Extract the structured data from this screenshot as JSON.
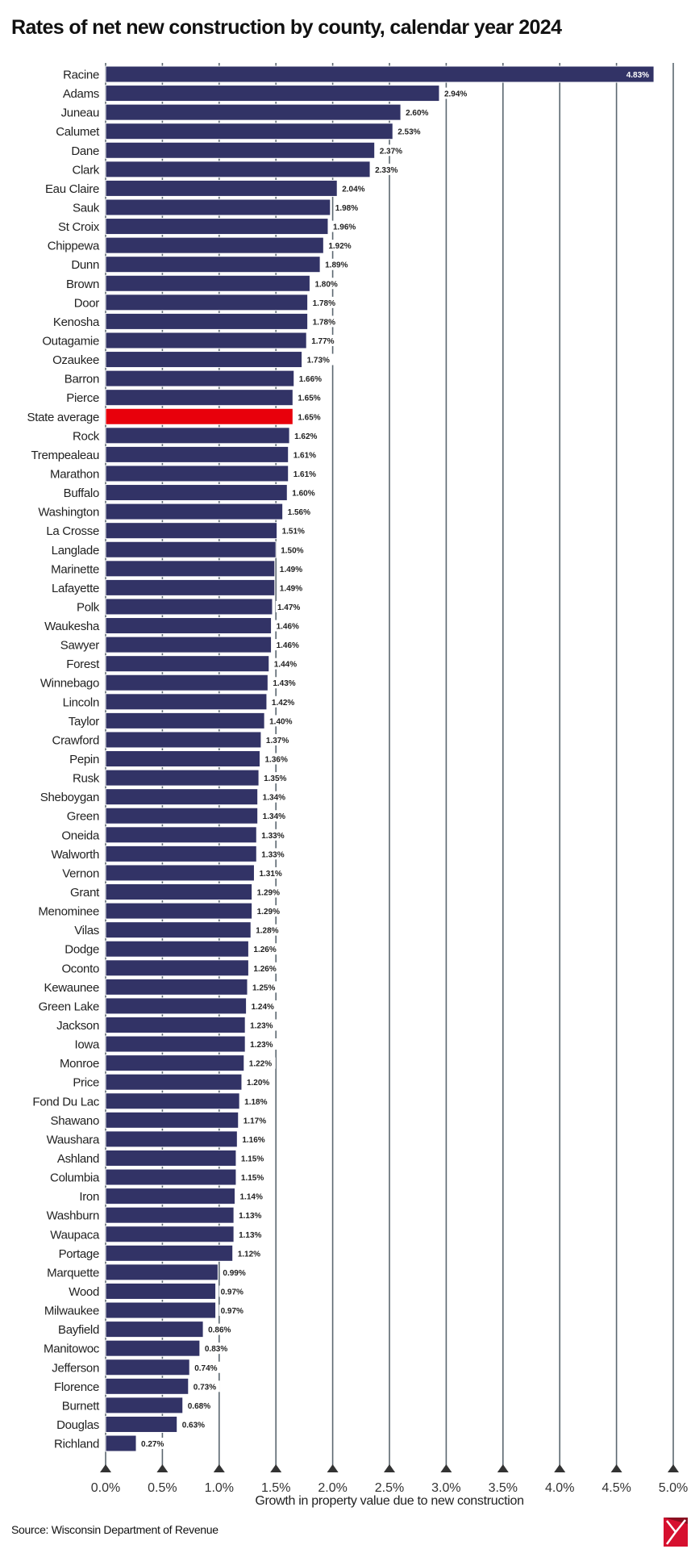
{
  "chart_data": {
    "type": "bar",
    "orientation": "horizontal",
    "title": "Rates of net new construction by county, calendar year 2024",
    "xlabel": "Growth in property value due to new construction",
    "ylabel": "",
    "xlim": [
      0,
      5.0
    ],
    "x_ticks": [
      "0.0%",
      "0.5%",
      "1.0%",
      "1.5%",
      "2.0%",
      "2.5%",
      "3.0%",
      "3.5%",
      "4.0%",
      "4.5%",
      "5.0%"
    ],
    "grid": "vertical",
    "bar_color": "#323366",
    "highlight_color": "#e8000b",
    "highlight_category": "State average",
    "categories": [
      "Racine",
      "Adams",
      "Juneau",
      "Calumet",
      "Dane",
      "Clark",
      "Eau Claire",
      "Sauk",
      "St Croix",
      "Chippewa",
      "Dunn",
      "Brown",
      "Door",
      "Kenosha",
      "Outagamie",
      "Ozaukee",
      "Barron",
      "Pierce",
      "State average",
      "Rock",
      "Trempealeau",
      "Marathon",
      "Buffalo",
      "Washington",
      "La Crosse",
      "Langlade",
      "Marinette",
      "Lafayette",
      "Polk",
      "Waukesha",
      "Sawyer",
      "Forest",
      "Winnebago",
      "Lincoln",
      "Taylor",
      "Crawford",
      "Pepin",
      "Rusk",
      "Sheboygan",
      "Green",
      "Oneida",
      "Walworth",
      "Vernon",
      "Grant",
      "Menominee",
      "Vilas",
      "Dodge",
      "Oconto",
      "Kewaunee",
      "Green Lake",
      "Jackson",
      "Iowa",
      "Monroe",
      "Price",
      "Fond Du Lac",
      "Shawano",
      "Waushara",
      "Ashland",
      "Columbia",
      "Iron",
      "Washburn",
      "Waupaca",
      "Portage",
      "Marquette",
      "Wood",
      "Milwaukee",
      "Bayfield",
      "Manitowoc",
      "Jefferson",
      "Florence",
      "Burnett",
      "Douglas",
      "Richland"
    ],
    "values": [
      4.83,
      2.94,
      2.6,
      2.53,
      2.37,
      2.33,
      2.04,
      1.98,
      1.96,
      1.92,
      1.89,
      1.8,
      1.78,
      1.78,
      1.77,
      1.73,
      1.66,
      1.65,
      1.65,
      1.62,
      1.61,
      1.61,
      1.6,
      1.56,
      1.51,
      1.5,
      1.49,
      1.49,
      1.47,
      1.46,
      1.46,
      1.44,
      1.43,
      1.42,
      1.4,
      1.37,
      1.36,
      1.35,
      1.34,
      1.34,
      1.33,
      1.33,
      1.31,
      1.29,
      1.29,
      1.28,
      1.26,
      1.26,
      1.25,
      1.24,
      1.23,
      1.23,
      1.22,
      1.2,
      1.18,
      1.17,
      1.16,
      1.15,
      1.15,
      1.14,
      1.13,
      1.13,
      1.12,
      0.99,
      0.97,
      0.97,
      0.86,
      0.83,
      0.74,
      0.73,
      0.68,
      0.63,
      0.27
    ],
    "data_labels": [
      "4.83%",
      "2.94%",
      "2.60%",
      "2.53%",
      "2.37%",
      "2.33%",
      "2.04%",
      "1.98%",
      "1.96%",
      "1.92%",
      "1.89%",
      "1.80%",
      "1.78%",
      "1.78%",
      "1.77%",
      "1.73%",
      "1.66%",
      "1.65%",
      "1.65%",
      "1.62%",
      "1.61%",
      "1.61%",
      "1.60%",
      "1.56%",
      "1.51%",
      "1.50%",
      "1.49%",
      "1.49%",
      "1.47%",
      "1.46%",
      "1.46%",
      "1.44%",
      "1.43%",
      "1.42%",
      "1.40%",
      "1.37%",
      "1.36%",
      "1.35%",
      "1.34%",
      "1.34%",
      "1.33%",
      "1.33%",
      "1.31%",
      "1.29%",
      "1.29%",
      "1.28%",
      "1.26%",
      "1.26%",
      "1.25%",
      "1.24%",
      "1.23%",
      "1.23%",
      "1.22%",
      "1.20%",
      "1.18%",
      "1.17%",
      "1.16%",
      "1.15%",
      "1.15%",
      "1.14%",
      "1.13%",
      "1.13%",
      "1.12%",
      "0.99%",
      "0.97%",
      "0.97%",
      "0.86%",
      "0.83%",
      "0.74%",
      "0.73%",
      "0.68%",
      "0.63%",
      "0.27%"
    ]
  },
  "source": "Source: Wisconsin Department of Revenue",
  "logo_colors": {
    "red": "#d6102f",
    "dark": "#8a1020"
  }
}
